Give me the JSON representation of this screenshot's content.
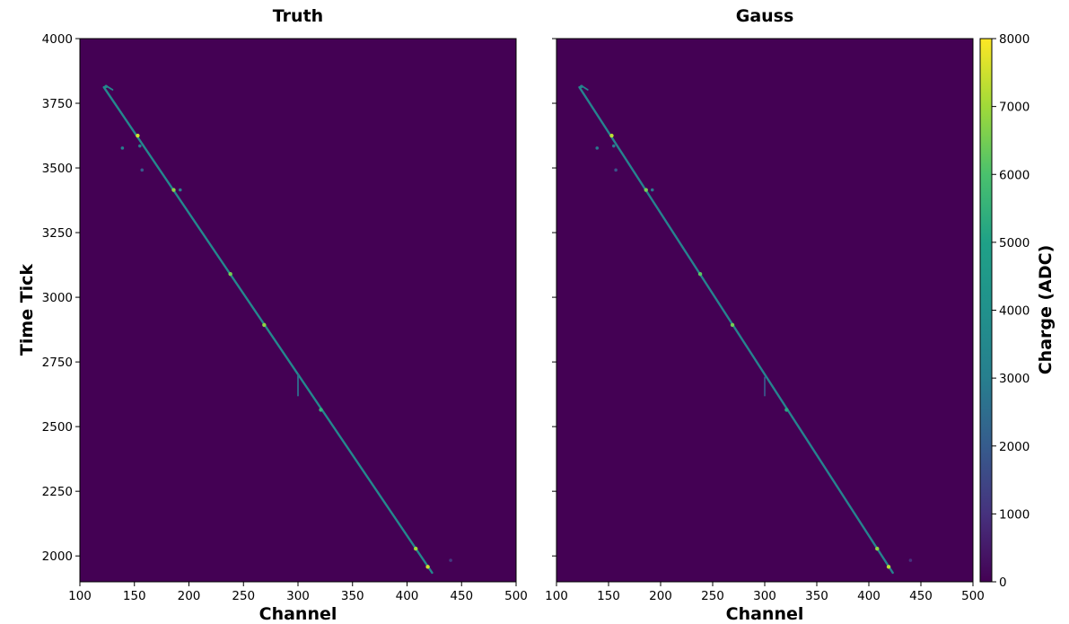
{
  "figure": {
    "colormap": "viridis"
  },
  "chart_data": [
    {
      "type": "heatmap",
      "title": "Truth",
      "xlabel": "Channel",
      "ylabel": "Time Tick",
      "xlim": [
        100,
        500
      ],
      "ylim": [
        1900,
        4000
      ],
      "xticks": [
        100,
        150,
        200,
        250,
        300,
        350,
        400,
        450,
        500
      ],
      "yticks": [
        2000,
        2250,
        2500,
        2750,
        3000,
        3250,
        3500,
        3750,
        4000
      ],
      "background_value": 0,
      "track": {
        "start": [
          122,
          3812
        ],
        "end": [
          423,
          1935
        ],
        "charge": 3500
      },
      "hits": [
        {
          "channel": 153,
          "tick": 3625,
          "charge": 7500
        },
        {
          "channel": 186,
          "tick": 3415,
          "charge": 6800
        },
        {
          "channel": 238,
          "tick": 3090,
          "charge": 6500
        },
        {
          "channel": 269,
          "tick": 2893,
          "charge": 6800
        },
        {
          "channel": 321,
          "tick": 2565,
          "charge": 5500
        },
        {
          "channel": 408,
          "tick": 2028,
          "charge": 7000
        },
        {
          "channel": 419,
          "tick": 1958,
          "charge": 7500
        },
        {
          "channel": 139,
          "tick": 3577,
          "charge": 3000
        },
        {
          "channel": 157,
          "tick": 3492,
          "charge": 2000
        },
        {
          "channel": 192,
          "tick": 3415,
          "charge": 3000
        },
        {
          "channel": 124,
          "tick": 3815,
          "charge": 3500
        },
        {
          "channel": 155,
          "tick": 3585,
          "charge": 3000
        },
        {
          "channel": 440,
          "tick": 1983,
          "charge": 1200
        }
      ],
      "branches": [
        {
          "points": [
            [
              300,
              2700
            ],
            [
              300,
              2620
            ]
          ],
          "charge": 2500
        },
        {
          "points": [
            [
              125,
              3815
            ],
            [
              130,
              3802
            ]
          ],
          "charge": 3500
        }
      ]
    },
    {
      "type": "heatmap",
      "title": "Gauss",
      "xlabel": "Channel",
      "xlim": [
        100,
        500
      ],
      "ylim": [
        1900,
        4000
      ],
      "xticks": [
        100,
        150,
        200,
        250,
        300,
        350,
        400,
        450,
        500
      ],
      "yticks": [
        2000,
        2250,
        2500,
        2750,
        3000,
        3250,
        3500,
        3750,
        4000
      ],
      "background_value": 0,
      "track": {
        "start": [
          122,
          3812
        ],
        "end": [
          423,
          1935
        ],
        "charge": 3200
      },
      "hits": [
        {
          "channel": 153,
          "tick": 3625,
          "charge": 7300
        },
        {
          "channel": 186,
          "tick": 3415,
          "charge": 6500
        },
        {
          "channel": 238,
          "tick": 3090,
          "charge": 6200
        },
        {
          "channel": 269,
          "tick": 2893,
          "charge": 6500
        },
        {
          "channel": 321,
          "tick": 2565,
          "charge": 5200
        },
        {
          "channel": 408,
          "tick": 2028,
          "charge": 6800
        },
        {
          "channel": 419,
          "tick": 1958,
          "charge": 7300
        },
        {
          "channel": 139,
          "tick": 3577,
          "charge": 2800
        },
        {
          "channel": 157,
          "tick": 3492,
          "charge": 1800
        },
        {
          "channel": 192,
          "tick": 3415,
          "charge": 2800
        },
        {
          "channel": 124,
          "tick": 3815,
          "charge": 3300
        },
        {
          "channel": 155,
          "tick": 3585,
          "charge": 2800
        },
        {
          "channel": 440,
          "tick": 1983,
          "charge": 1000
        }
      ],
      "branches": [
        {
          "points": [
            [
              300,
              2690
            ],
            [
              300,
              2620
            ]
          ],
          "charge": 1800
        },
        {
          "points": [
            [
              125,
              3815
            ],
            [
              130,
              3802
            ]
          ],
          "charge": 3300
        }
      ]
    }
  ],
  "colorbar": {
    "label": "Charge (ADC)",
    "range": [
      0,
      8000
    ],
    "ticks": [
      0,
      1000,
      2000,
      3000,
      4000,
      5000,
      6000,
      7000,
      8000
    ]
  }
}
